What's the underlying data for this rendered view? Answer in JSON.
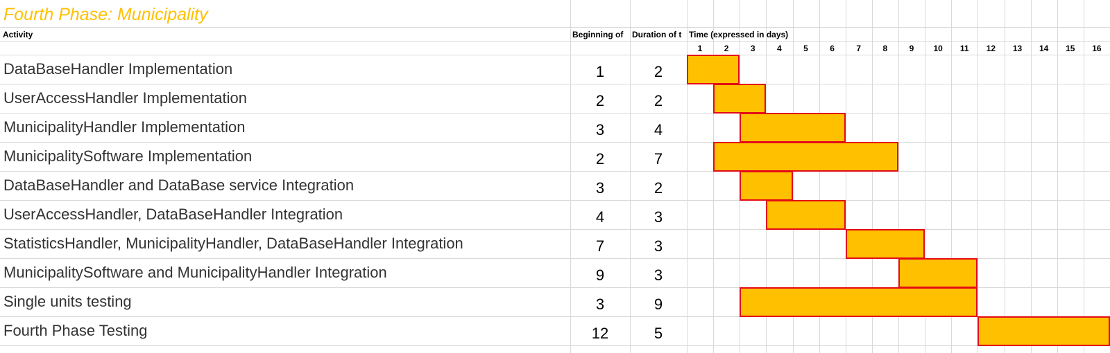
{
  "sheet_title": "Fourth Phase: Municipality",
  "headers": {
    "activity": "Activity",
    "beginning": "Beginning of",
    "duration": "Duration of t",
    "time": "Time (expressed in days)"
  },
  "colors": {
    "title": "#ffc000",
    "bar_fill": "#ffc000",
    "bar_border": "#e30b17",
    "grid": "#d9d9d9"
  },
  "chart_data": {
    "type": "gantt",
    "title": "Fourth Phase: Municipality",
    "x_axis_label": "Time (expressed in days)",
    "days": [
      1,
      2,
      3,
      4,
      5,
      6,
      7,
      8,
      9,
      10,
      11,
      12,
      13,
      14,
      15,
      16
    ],
    "tasks": [
      {
        "activity": "DataBaseHandler Implementation",
        "start": 1,
        "duration": 2
      },
      {
        "activity": "UserAccessHandler Implementation",
        "start": 2,
        "duration": 2
      },
      {
        "activity": "MunicipalityHandler Implementation",
        "start": 3,
        "duration": 4
      },
      {
        "activity": "MunicipalitySoftware Implementation",
        "start": 2,
        "duration": 7
      },
      {
        "activity": "DataBaseHandler and DataBase service Integration",
        "start": 3,
        "duration": 2
      },
      {
        "activity": "UserAccessHandler, DataBaseHandler Integration",
        "start": 4,
        "duration": 3
      },
      {
        "activity": "StatisticsHandler, MunicipalityHandler, DataBaseHandler Integration",
        "start": 7,
        "duration": 3
      },
      {
        "activity": "MunicipalitySoftware and MunicipalityHandler Integration",
        "start": 9,
        "duration": 3
      },
      {
        "activity": "Single units testing",
        "start": 3,
        "duration": 9
      },
      {
        "activity": "Fourth Phase Testing",
        "start": 12,
        "duration": 5
      }
    ]
  }
}
